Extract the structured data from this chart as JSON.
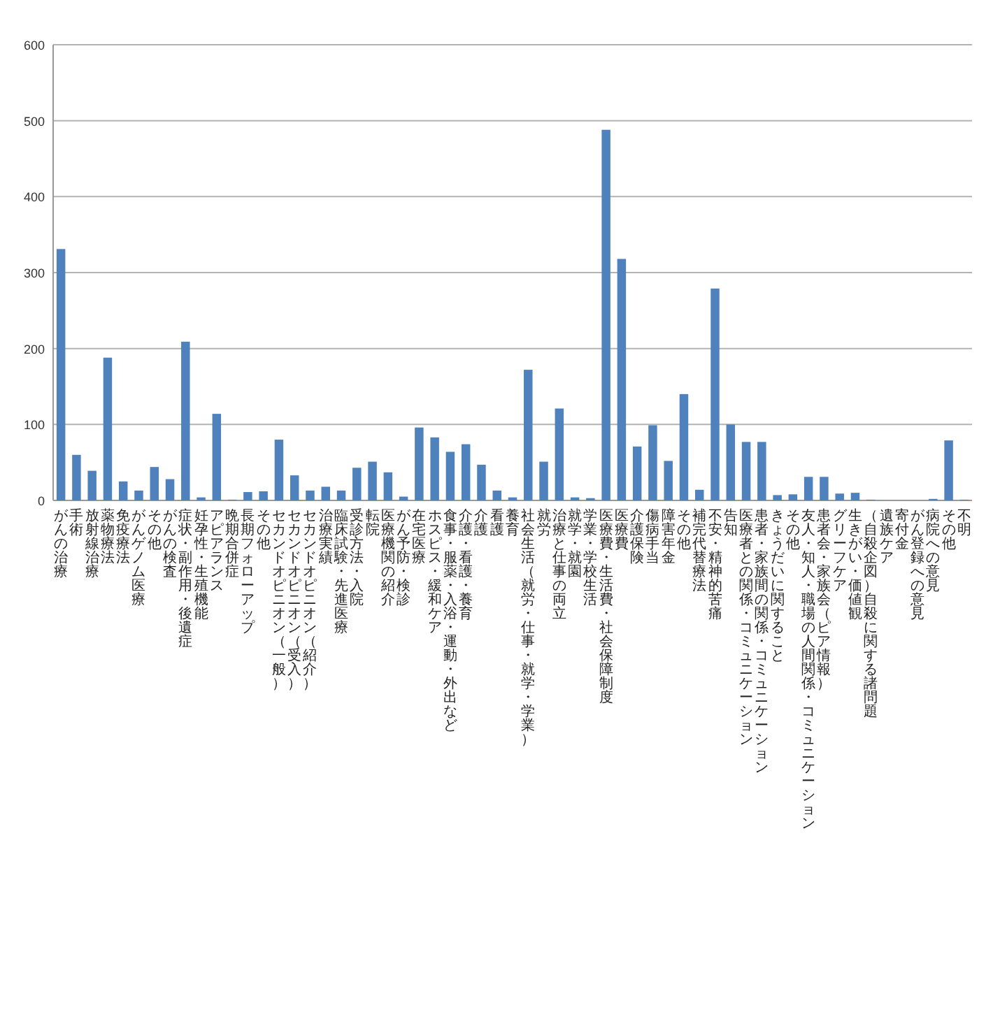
{
  "chart_data": {
    "type": "bar",
    "categories": [
      "がんの治療",
      "手術",
      "放射線治療",
      "薬物療法",
      "免疫療法",
      "がんゲノム医療",
      "その他",
      "がんの検査",
      "症状・副作用・後遺症",
      "妊孕性・生殖機能",
      "アピアランス",
      "晩期合併症",
      "長期フォローアップ",
      "その他",
      "セカンドオピニオン（一般）",
      "セカンドオピニオン（受入）",
      "セカンドオピニオン（紹介）",
      "治療実績",
      "臨床試験・先進医療",
      "受診方法・入院",
      "転院",
      "医療機関の紹介",
      "がん予防・検診",
      "在宅医療",
      "ホスピス・緩和ケア",
      "食事・服薬・入浴・運動・外出など",
      "介護・看護・養育",
      "介護",
      "看護",
      "養育",
      "社会生活（就労・仕事・就学・学業）",
      "就労",
      "治療と仕事の両立",
      "就学・就園",
      "学業・学校生活",
      "医療費・生活費・社会保障制度",
      "医療費",
      "介護保険",
      "傷病手当",
      "障害年金",
      "その他",
      "補完代替療法",
      "不安・精神的苦痛",
      "告知",
      "医療者との関係・コミュニケーション",
      "患者・家族間の関係・コミュニケーション",
      "きょうだいに関すること",
      "その他",
      "友人・知人・職場の人間関係・コミュニケーション",
      "患者会・家族会（ピア情報）",
      "グリーフケア",
      "生きがい・価値観",
      "（自殺企図）自殺に関する諸問題",
      "遺族ケア",
      "寄付金",
      "がん登録への意見",
      "病院への意見",
      "その他",
      "不明"
    ],
    "values": [
      331,
      60,
      39,
      188,
      25,
      13,
      44,
      28,
      209,
      4,
      114,
      1,
      11,
      12,
      80,
      33,
      13,
      18,
      13,
      43,
      51,
      37,
      5,
      96,
      83,
      64,
      74,
      47,
      13,
      4,
      172,
      51,
      121,
      4,
      3,
      488,
      318,
      71,
      99,
      52,
      140,
      14,
      279,
      100,
      77,
      77,
      7,
      8,
      31,
      31,
      9,
      10,
      1,
      0,
      0,
      0,
      2,
      79,
      1
    ],
    "color": "#4f81bd",
    "ylim": [
      0,
      600
    ],
    "yticks": [
      0,
      100,
      200,
      300,
      400,
      500,
      600
    ],
    "grid": "y",
    "legend": false
  }
}
